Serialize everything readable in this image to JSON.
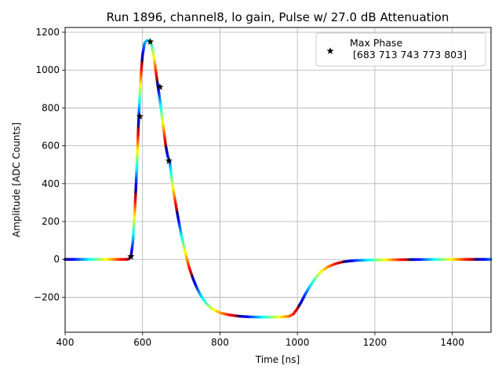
{
  "chart_data": {
    "type": "scatter",
    "title": "Run 1896, channel8, lo gain, Pulse w/ 27.0 dB Attenuation",
    "xlabel": "Time [ns]",
    "ylabel": "Amplitude [ADC Counts]",
    "xlim": [
      400,
      1500
    ],
    "ylim": [
      -385,
      1225
    ],
    "xticks": [
      400,
      600,
      800,
      1000,
      1200,
      1400
    ],
    "yticks": [
      -200,
      0,
      200,
      400,
      600,
      800,
      1000,
      1200
    ],
    "xtick_labels": [
      "400",
      "600",
      "800",
      "1000",
      "1200",
      "1400"
    ],
    "ytick_labels": [
      "−200",
      "0",
      "200",
      "400",
      "600",
      "800",
      "1000",
      "1200"
    ],
    "grid": true,
    "legend_position": "top-right",
    "colormap": "jet",
    "pulse_curve": {
      "x": [
        400,
        560,
        565,
        570,
        575,
        580,
        585,
        590,
        595,
        600,
        605,
        610,
        615,
        620,
        625,
        630,
        635,
        640,
        645,
        650,
        655,
        660,
        665,
        670,
        675,
        680,
        690,
        700,
        710,
        720,
        730,
        740,
        750,
        760,
        770,
        780,
        800,
        820,
        840,
        860,
        880,
        900,
        920,
        940,
        960,
        980,
        990,
        1000,
        1010,
        1020,
        1030,
        1040,
        1050,
        1060,
        1080,
        1100,
        1120,
        1150,
        1200,
        1300,
        1400,
        1500
      ],
      "y": [
        0,
        0,
        2,
        15,
        90,
        250,
        480,
        740,
        950,
        1080,
        1140,
        1155,
        1158,
        1150,
        1120,
        1060,
        985,
        910,
        840,
        760,
        680,
        600,
        545,
        520,
        430,
        360,
        240,
        130,
        40,
        -40,
        -100,
        -150,
        -190,
        -220,
        -245,
        -262,
        -282,
        -292,
        -298,
        -302,
        -304,
        -305,
        -305,
        -305,
        -304,
        -300,
        -288,
        -260,
        -225,
        -185,
        -150,
        -118,
        -90,
        -66,
        -38,
        -22,
        -12,
        -6,
        -3,
        -1,
        0,
        0
      ]
    },
    "max_phase_points": {
      "x": [
        570,
        593,
        620,
        645,
        668
      ],
      "y": [
        15,
        755,
        1150,
        910,
        520
      ]
    },
    "legend": {
      "entry_label": "Max Phase",
      "entry_values": "[683 713 743 773 803]"
    }
  }
}
